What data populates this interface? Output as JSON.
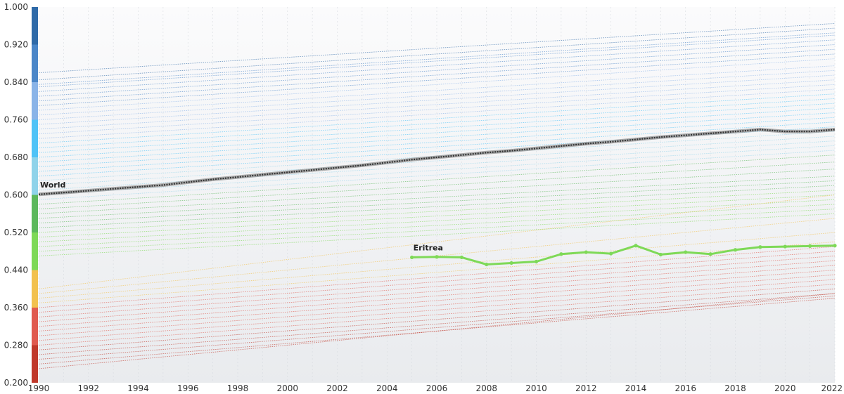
{
  "chart_data": {
    "type": "line",
    "title": "",
    "xlabel": "",
    "ylabel": "",
    "xlim": [
      1990,
      2022
    ],
    "ylim": [
      0.2,
      1.0
    ],
    "x_ticks": [
      1990,
      1992,
      1994,
      1996,
      1998,
      2000,
      2002,
      2004,
      2006,
      2008,
      2010,
      2012,
      2014,
      2016,
      2018,
      2020,
      2022
    ],
    "y_ticks": [
      "0.200",
      "0.280",
      "0.360",
      "0.440",
      "0.520",
      "0.600",
      "0.680",
      "0.760",
      "0.840",
      "0.920",
      "1.000"
    ],
    "grid": true,
    "legend": "none",
    "color_scale": [
      {
        "from": 0.2,
        "to": 0.28,
        "color": "#c0392b"
      },
      {
        "from": 0.28,
        "to": 0.36,
        "color": "#e05a4f"
      },
      {
        "from": 0.36,
        "to": 0.44,
        "color": "#f2c14e"
      },
      {
        "from": 0.44,
        "to": 0.52,
        "color": "#7ed957"
      },
      {
        "from": 0.52,
        "to": 0.6,
        "color": "#5cb85c"
      },
      {
        "from": 0.6,
        "to": 0.68,
        "color": "#8fd3ea"
      },
      {
        "from": 0.68,
        "to": 0.76,
        "color": "#4fc3f7"
      },
      {
        "from": 0.76,
        "to": 0.84,
        "color": "#8ab4e8"
      },
      {
        "from": 0.84,
        "to": 0.92,
        "color": "#4a86c8"
      },
      {
        "from": 0.92,
        "to": 1.0,
        "color": "#2f6aa8"
      }
    ],
    "highlighted_series": [
      {
        "name": "World",
        "color": "#333333",
        "x": [
          1990,
          1991,
          1992,
          1993,
          1994,
          1995,
          1996,
          1997,
          1998,
          1999,
          2000,
          2001,
          2002,
          2003,
          2004,
          2005,
          2006,
          2007,
          2008,
          2009,
          2010,
          2011,
          2012,
          2013,
          2014,
          2015,
          2016,
          2017,
          2018,
          2019,
          2020,
          2021,
          2022
        ],
        "y": [
          0.601,
          0.605,
          0.609,
          0.613,
          0.617,
          0.621,
          0.627,
          0.633,
          0.638,
          0.643,
          0.648,
          0.653,
          0.658,
          0.663,
          0.669,
          0.675,
          0.68,
          0.685,
          0.69,
          0.694,
          0.699,
          0.704,
          0.709,
          0.713,
          0.718,
          0.723,
          0.727,
          0.731,
          0.735,
          0.739,
          0.735,
          0.735,
          0.739
        ]
      },
      {
        "name": "Eritrea",
        "color": "#7ed957",
        "x": [
          2005,
          2006,
          2007,
          2008,
          2009,
          2010,
          2011,
          2012,
          2013,
          2014,
          2015,
          2016,
          2017,
          2018,
          2019,
          2020,
          2021,
          2022
        ],
        "y": [
          0.467,
          0.468,
          0.467,
          0.452,
          0.455,
          0.458,
          0.474,
          0.478,
          0.475,
          0.492,
          0.473,
          0.478,
          0.474,
          0.483,
          0.489,
          0.49,
          0.491,
          0.492
        ]
      }
    ],
    "background_series": [
      {
        "color": "#2f6aa8",
        "x": [
          1990,
          2022
        ],
        "y": [
          0.86,
          0.965
        ]
      },
      {
        "color": "#2f6aa8",
        "x": [
          1990,
          2022
        ],
        "y": [
          0.845,
          0.955
        ]
      },
      {
        "color": "#4a86c8",
        "x": [
          1990,
          2022
        ],
        "y": [
          0.835,
          0.945
        ]
      },
      {
        "color": "#4a86c8",
        "x": [
          1990,
          2022
        ],
        "y": [
          0.83,
          0.94
        ]
      },
      {
        "color": "#4a86c8",
        "x": [
          1990,
          2022
        ],
        "y": [
          0.82,
          0.93
        ]
      },
      {
        "color": "#4a86c8",
        "x": [
          1990,
          2022
        ],
        "y": [
          0.81,
          0.92
        ]
      },
      {
        "color": "#4a86c8",
        "x": [
          1990,
          2022
        ],
        "y": [
          0.8,
          0.91
        ]
      },
      {
        "color": "#4a86c8",
        "x": [
          1990,
          2022
        ],
        "y": [
          0.79,
          0.9
        ]
      },
      {
        "color": "#8ab4e8",
        "x": [
          1990,
          2022
        ],
        "y": [
          0.78,
          0.89
        ]
      },
      {
        "color": "#8ab4e8",
        "x": [
          1990,
          2022
        ],
        "y": [
          0.77,
          0.875
        ]
      },
      {
        "color": "#8ab4e8",
        "x": [
          1990,
          2022
        ],
        "y": [
          0.76,
          0.865
        ]
      },
      {
        "color": "#8ab4e8",
        "x": [
          1990,
          2022
        ],
        "y": [
          0.75,
          0.855
        ]
      },
      {
        "color": "#8ab4e8",
        "x": [
          1990,
          2022
        ],
        "y": [
          0.74,
          0.845
        ]
      },
      {
        "color": "#8ab4e8",
        "x": [
          1990,
          2022
        ],
        "y": [
          0.73,
          0.835
        ]
      },
      {
        "color": "#8ab4e8",
        "x": [
          1990,
          2022
        ],
        "y": [
          0.72,
          0.825
        ]
      },
      {
        "color": "#4fc3f7",
        "x": [
          1990,
          2022
        ],
        "y": [
          0.71,
          0.815
        ]
      },
      {
        "color": "#4fc3f7",
        "x": [
          1990,
          2022
        ],
        "y": [
          0.7,
          0.805
        ]
      },
      {
        "color": "#4fc3f7",
        "x": [
          1990,
          2022
        ],
        "y": [
          0.69,
          0.795
        ]
      },
      {
        "color": "#4fc3f7",
        "x": [
          1990,
          2022
        ],
        "y": [
          0.68,
          0.785
        ]
      },
      {
        "color": "#4fc3f7",
        "x": [
          1990,
          2022
        ],
        "y": [
          0.67,
          0.775
        ]
      },
      {
        "color": "#4fc3f7",
        "x": [
          1990,
          2022
        ],
        "y": [
          0.66,
          0.765
        ]
      },
      {
        "color": "#4fc3f7",
        "x": [
          1990,
          2022
        ],
        "y": [
          0.65,
          0.755
        ]
      },
      {
        "color": "#4fc3f7",
        "x": [
          1990,
          2022
        ],
        "y": [
          0.64,
          0.745
        ]
      },
      {
        "color": "#8fd3ea",
        "x": [
          1990,
          2022
        ],
        "y": [
          0.63,
          0.735
        ]
      },
      {
        "color": "#8fd3ea",
        "x": [
          1990,
          2022
        ],
        "y": [
          0.62,
          0.725
        ]
      },
      {
        "color": "#8fd3ea",
        "x": [
          1990,
          2022
        ],
        "y": [
          0.61,
          0.715
        ]
      },
      {
        "color": "#8fd3ea",
        "x": [
          1990,
          2022
        ],
        "y": [
          0.6,
          0.705
        ]
      },
      {
        "color": "#8fd3ea",
        "x": [
          1990,
          2022
        ],
        "y": [
          0.59,
          0.695
        ]
      },
      {
        "color": "#5cb85c",
        "x": [
          1990,
          2022
        ],
        "y": [
          0.58,
          0.685
        ]
      },
      {
        "color": "#5cb85c",
        "x": [
          1990,
          2022
        ],
        "y": [
          0.57,
          0.67
        ]
      },
      {
        "color": "#5cb85c",
        "x": [
          1990,
          2022
        ],
        "y": [
          0.56,
          0.655
        ]
      },
      {
        "color": "#5cb85c",
        "x": [
          1990,
          2022
        ],
        "y": [
          0.55,
          0.64
        ]
      },
      {
        "color": "#5cb85c",
        "x": [
          1990,
          2022
        ],
        "y": [
          0.54,
          0.63
        ]
      },
      {
        "color": "#5cb85c",
        "x": [
          1990,
          2022
        ],
        "y": [
          0.53,
          0.62
        ]
      },
      {
        "color": "#7ed957",
        "x": [
          1990,
          2022
        ],
        "y": [
          0.52,
          0.61
        ]
      },
      {
        "color": "#7ed957",
        "x": [
          1990,
          2022
        ],
        "y": [
          0.51,
          0.6
        ]
      },
      {
        "color": "#7ed957",
        "x": [
          1990,
          2022
        ],
        "y": [
          0.5,
          0.59
        ]
      },
      {
        "color": "#7ed957",
        "x": [
          1990,
          2022
        ],
        "y": [
          0.49,
          0.58
        ]
      },
      {
        "color": "#7ed957",
        "x": [
          1990,
          2022
        ],
        "y": [
          0.48,
          0.57
        ]
      },
      {
        "color": "#7ed957",
        "x": [
          1990,
          2022
        ],
        "y": [
          0.47,
          0.56
        ]
      },
      {
        "color": "#f2c14e",
        "x": [
          1990,
          2022
        ],
        "y": [
          0.4,
          0.6
        ]
      },
      {
        "color": "#f2c14e",
        "x": [
          1990,
          2022
        ],
        "y": [
          0.39,
          0.55
        ]
      },
      {
        "color": "#f2c14e",
        "x": [
          1990,
          2022
        ],
        "y": [
          0.38,
          0.52
        ]
      },
      {
        "color": "#f2c14e",
        "x": [
          1990,
          2022
        ],
        "y": [
          0.37,
          0.5
        ]
      },
      {
        "color": "#e05a4f",
        "x": [
          1990,
          2022
        ],
        "y": [
          0.36,
          0.49
        ]
      },
      {
        "color": "#e05a4f",
        "x": [
          1990,
          2022
        ],
        "y": [
          0.35,
          0.48
        ]
      },
      {
        "color": "#e05a4f",
        "x": [
          1990,
          2022
        ],
        "y": [
          0.34,
          0.47
        ]
      },
      {
        "color": "#e05a4f",
        "x": [
          1990,
          2022
        ],
        "y": [
          0.33,
          0.46
        ]
      },
      {
        "color": "#e05a4f",
        "x": [
          1990,
          2022
        ],
        "y": [
          0.32,
          0.45
        ]
      },
      {
        "color": "#e05a4f",
        "x": [
          1990,
          2022
        ],
        "y": [
          0.31,
          0.44
        ]
      },
      {
        "color": "#e05a4f",
        "x": [
          1990,
          2022
        ],
        "y": [
          0.3,
          0.43
        ]
      },
      {
        "color": "#e05a4f",
        "x": [
          1990,
          2022
        ],
        "y": [
          0.29,
          0.42
        ]
      },
      {
        "color": "#e05a4f",
        "x": [
          1990,
          2022
        ],
        "y": [
          0.28,
          0.41
        ]
      },
      {
        "color": "#c0392b",
        "x": [
          1990,
          2022
        ],
        "y": [
          0.27,
          0.4
        ]
      },
      {
        "color": "#c0392b",
        "x": [
          1990,
          2022
        ],
        "y": [
          0.26,
          0.39
        ]
      },
      {
        "color": "#c0392b",
        "x": [
          1990,
          2022
        ],
        "y": [
          0.25,
          0.385
        ]
      },
      {
        "color": "#c0392b",
        "x": [
          1990,
          2022
        ],
        "y": [
          0.24,
          0.38
        ]
      },
      {
        "color": "#c0392b",
        "x": [
          1990,
          2022
        ],
        "y": [
          0.23,
          0.39
        ]
      }
    ]
  }
}
